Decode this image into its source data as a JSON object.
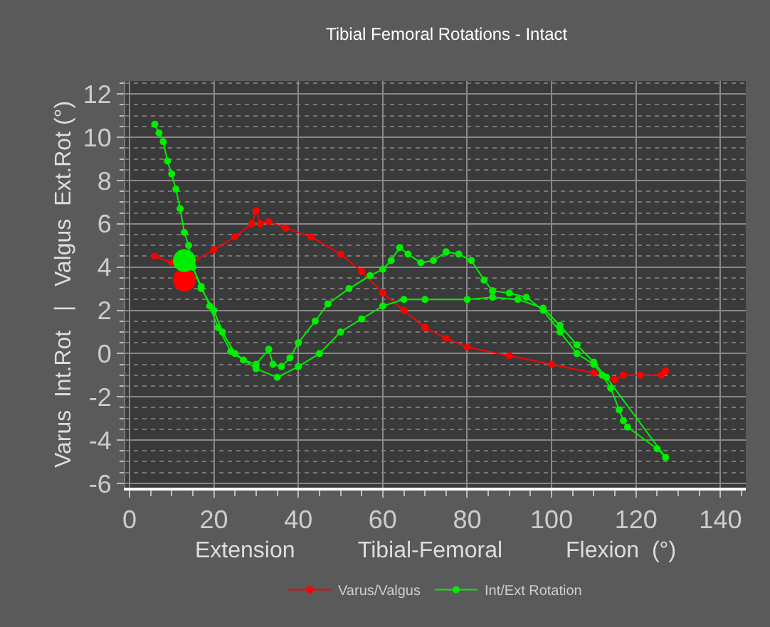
{
  "chart_data": {
    "type": "line",
    "title": "Tibial Femoral Rotations - Intact",
    "xlabel": "Extension          Tibial-Femoral          Flexion  (°)",
    "ylabel": "Varus  Int.Rot   |   Valgus  Ext.Rot (°)",
    "xlim": [
      -1,
      146
    ],
    "ylim": [
      -6.2,
      12.6
    ],
    "xticks": [
      0,
      20,
      40,
      60,
      80,
      100,
      120,
      140
    ],
    "yticks": [
      -6,
      -4,
      -2,
      0,
      2,
      4,
      6,
      8,
      10,
      12
    ],
    "grid": true,
    "legend": "bottom",
    "marker": "circle",
    "line_style": "solid",
    "series": [
      {
        "name": "Varus/Valgus",
        "color": "#ff0000",
        "x": [
          6,
          10,
          13,
          20,
          25,
          29,
          30,
          31,
          33,
          37,
          43,
          50,
          55,
          60,
          65,
          70,
          75,
          80,
          90,
          100,
          110,
          115,
          117,
          121,
          126,
          127
        ],
        "values": [
          4.5,
          4.2,
          4.0,
          4.8,
          5.4,
          6.0,
          6.6,
          6.0,
          6.1,
          5.8,
          5.4,
          4.6,
          3.8,
          2.8,
          2.0,
          1.2,
          0.7,
          0.3,
          -0.1,
          -0.5,
          -0.9,
          -1.2,
          -1.0,
          -1.0,
          -1.0,
          -0.8
        ]
      },
      {
        "name": "Int/Ext Rotation",
        "color": "#00ee00",
        "x": [
          6,
          7,
          8,
          9,
          10,
          11,
          12,
          13,
          14,
          15,
          17,
          19,
          21,
          24,
          27,
          30,
          33,
          34,
          36,
          38,
          40,
          44,
          47,
          52,
          57,
          60,
          62,
          64,
          66,
          69,
          72,
          75,
          78,
          81,
          84,
          86,
          90,
          94,
          98,
          102,
          106,
          110,
          112,
          114,
          116,
          117,
          118,
          125,
          127,
          113,
          110,
          106,
          102,
          98,
          92,
          86,
          80,
          70,
          65,
          60,
          55,
          50,
          45,
          40,
          35,
          30,
          25,
          22,
          20,
          17,
          15,
          13
        ],
        "values": [
          10.6,
          10.2,
          9.8,
          8.9,
          8.3,
          7.6,
          6.7,
          5.6,
          5.0,
          4.0,
          3.1,
          2.2,
          1.2,
          0.1,
          -0.3,
          -0.5,
          0.2,
          -0.5,
          -0.6,
          -0.2,
          0.5,
          1.5,
          2.3,
          3.0,
          3.6,
          3.9,
          4.3,
          4.9,
          4.6,
          4.2,
          4.3,
          4.7,
          4.6,
          4.3,
          3.4,
          2.9,
          2.8,
          2.6,
          2.0,
          1.0,
          0.0,
          -0.5,
          -1.0,
          -1.6,
          -2.6,
          -3.1,
          -3.4,
          -4.4,
          -4.8,
          -1.1,
          -0.4,
          0.4,
          1.3,
          2.1,
          2.5,
          2.6,
          2.5,
          2.5,
          2.5,
          2.2,
          1.6,
          1.0,
          0.0,
          -0.6,
          -1.1,
          -0.7,
          0.0,
          1.0,
          2.0,
          3.0,
          4.0,
          4.5
        ]
      },
      {
        "type": "scatter",
        "color": "#ff0000",
        "x": [
          13
        ],
        "values": [
          3.4
        ]
      },
      {
        "type": "scatter",
        "color": "#00ee00",
        "x": [
          13
        ],
        "values": [
          4.3
        ]
      }
    ]
  }
}
